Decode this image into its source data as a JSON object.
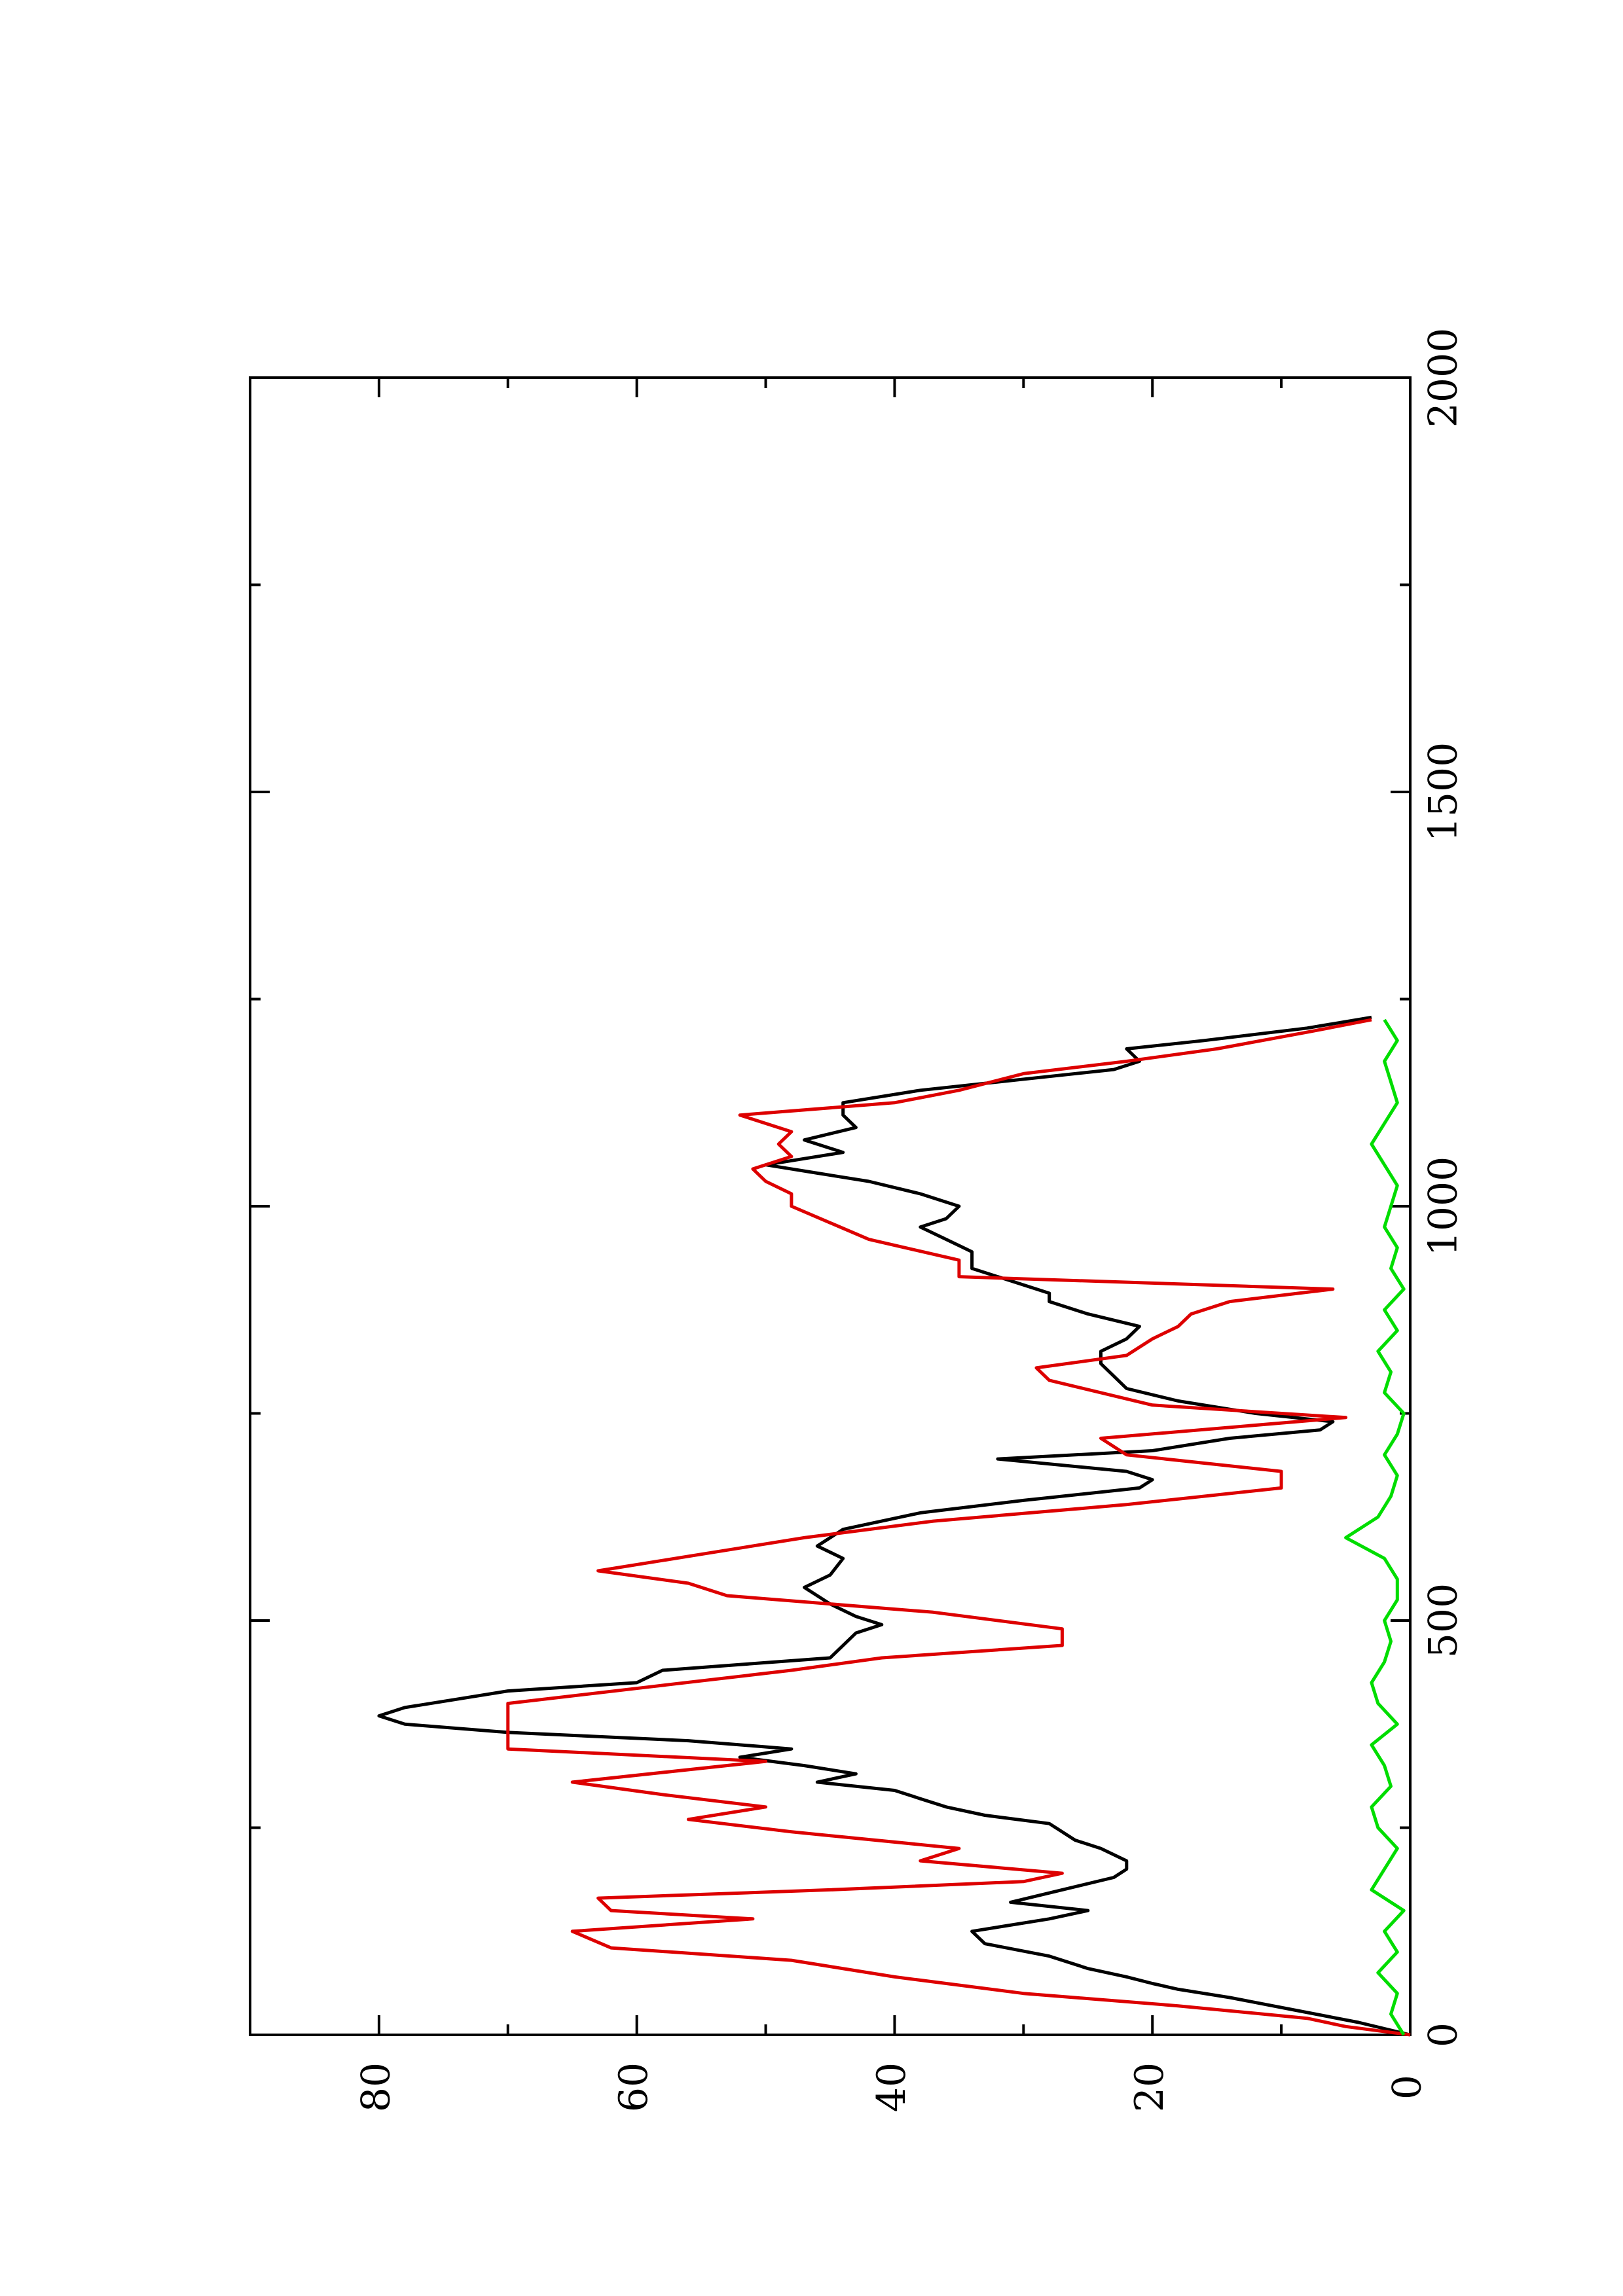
{
  "chart_data": {
    "type": "line",
    "orientation": "rotated-90-ccw",
    "title": "",
    "xlabel": "",
    "ylabel": "",
    "xlim": [
      0,
      2000
    ],
    "ylim": [
      0,
      90
    ],
    "x_ticks": [
      0,
      500,
      1000,
      1500,
      2000
    ],
    "x_tick_labels": [
      "0",
      "500",
      "1000",
      "1500",
      "2000"
    ],
    "x_minor_ticks": [
      250,
      750,
      1250,
      1750
    ],
    "y_ticks": [
      0,
      20,
      40,
      60,
      80
    ],
    "y_tick_labels": [
      "0",
      "20",
      "40",
      "60",
      "80"
    ],
    "y_minor_ticks": [
      10,
      30,
      50,
      70
    ],
    "grid": false,
    "legend": "none",
    "series": [
      {
        "color": "#000000",
        "x": [
          0,
          15,
          30,
          45,
          55,
          62,
          70,
          80,
          95,
          110,
          125,
          140,
          150,
          160,
          175,
          190,
          200,
          210,
          225,
          235,
          245,
          255,
          265,
          275,
          285,
          295,
          305,
          315,
          325,
          335,
          345,
          355,
          365,
          375,
          385,
          395,
          405,
          415,
          425,
          440,
          455,
          470,
          485,
          495,
          505,
          520,
          540,
          555,
          575,
          590,
          610,
          630,
          645,
          660,
          670,
          680,
          695,
          705,
          720,
          730,
          740,
          750,
          765,
          780,
          795,
          810,
          825,
          840,
          855,
          870,
          885,
          895,
          910,
          925,
          945,
          960,
          975,
          985,
          1000,
          1015,
          1030,
          1040,
          1050,
          1065,
          1080,
          1095,
          1110,
          1125,
          1140,
          1150,
          1165,
          1175,
          1190,
          1200,
          1215,
          1228
        ],
        "y": [
          0,
          4,
          9,
          14,
          18,
          20,
          22,
          25,
          28,
          33,
          34,
          28,
          25,
          31,
          27,
          23,
          22,
          22,
          24,
          26,
          27,
          28,
          33,
          36,
          38,
          40,
          46,
          43,
          47,
          52,
          48,
          56,
          70,
          78,
          80,
          78,
          74,
          70,
          60,
          58,
          45,
          44,
          43,
          41,
          43,
          45,
          47,
          45,
          44,
          46,
          44,
          38,
          30,
          21,
          20,
          22,
          32,
          20,
          14,
          7,
          6,
          12,
          18,
          22,
          23,
          24,
          24,
          22,
          21,
          25,
          28,
          28,
          31,
          34,
          34,
          36,
          38,
          36,
          35,
          38,
          42,
          46,
          50,
          44,
          47,
          43,
          44,
          44,
          38,
          32,
          23,
          21,
          22,
          16,
          8,
          3
        ]
      },
      {
        "color": "#dd0000",
        "x": [
          0,
          10,
          20,
          35,
          50,
          70,
          90,
          105,
          125,
          140,
          150,
          165,
          175,
          185,
          195,
          210,
          225,
          245,
          260,
          275,
          290,
          305,
          330,
          345,
          365,
          400,
          420,
          440,
          455,
          470,
          490,
          510,
          530,
          545,
          560,
          580,
          600,
          620,
          640,
          660,
          680,
          700,
          720,
          745,
          760,
          790,
          805,
          820,
          840,
          855,
          870,
          885,
          900,
          915,
          935,
          960,
          980,
          1000,
          1015,
          1030,
          1045,
          1060,
          1075,
          1090,
          1110,
          1125,
          1140,
          1160,
          1175,
          1190,
          1210,
          1225
        ],
        "y": [
          0,
          5,
          8,
          18,
          30,
          40,
          48,
          62,
          65,
          51,
          62,
          63,
          45,
          30,
          27,
          38,
          35,
          48,
          56,
          50,
          58,
          65,
          50,
          70,
          70,
          70,
          59,
          48,
          41,
          27,
          27,
          37,
          53,
          56,
          63,
          55,
          47,
          37,
          22,
          10,
          10,
          22,
          24,
          5,
          20,
          28,
          29,
          22,
          20,
          18,
          17,
          14,
          6,
          35,
          35,
          42,
          45,
          48,
          48,
          50,
          51,
          48,
          49,
          48,
          52,
          40,
          35,
          30,
          22,
          15,
          8,
          3
        ]
      },
      {
        "color": "#00dd00",
        "x": [
          0,
          25,
          50,
          75,
          100,
          125,
          150,
          175,
          200,
          225,
          250,
          275,
          300,
          325,
          350,
          375,
          400,
          425,
          450,
          475,
          500,
          525,
          550,
          575,
          600,
          625,
          650,
          675,
          700,
          725,
          750,
          775,
          800,
          825,
          850,
          875,
          900,
          925,
          950,
          975,
          1000,
          1025,
          1050,
          1075,
          1100,
          1125,
          1150,
          1175,
          1200,
          1225
        ],
        "y": [
          0.5,
          1.5,
          1,
          2.5,
          1,
          2,
          0.5,
          3,
          2,
          1,
          2.5,
          3,
          1.5,
          2,
          3,
          1,
          2.5,
          3,
          2,
          1.5,
          2,
          1,
          1,
          2,
          5,
          2.5,
          1.5,
          1,
          2,
          1,
          0.5,
          2,
          1.5,
          2.5,
          1,
          2,
          0.5,
          1.5,
          1,
          2,
          1.5,
          1,
          2,
          3,
          2,
          1,
          1.5,
          2,
          1,
          2
        ]
      }
    ]
  }
}
